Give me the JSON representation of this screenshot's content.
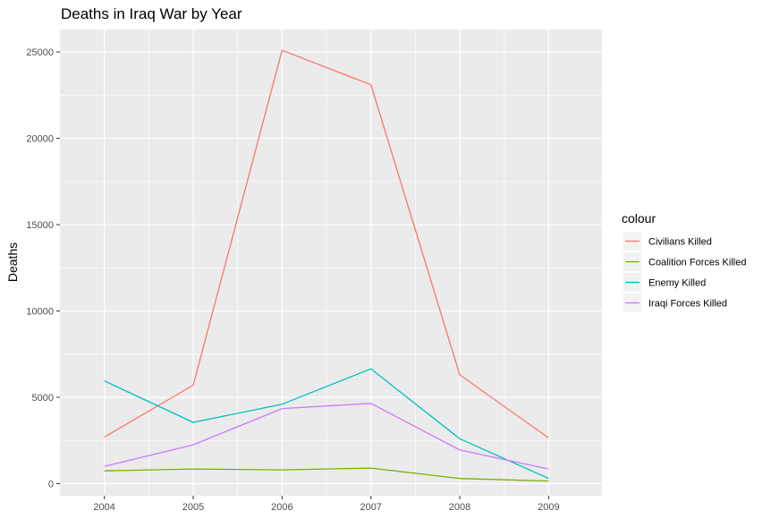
{
  "chart_data": {
    "type": "line",
    "title": "Deaths in Iraq War by Year",
    "xlabel": "",
    "ylabel": "Deaths",
    "x": [
      2004,
      2005,
      2006,
      2007,
      2008,
      2009
    ],
    "x_tick_labels": [
      "2004",
      "2005",
      "2006",
      "2007",
      "2008",
      "2009"
    ],
    "y_ticks": [
      0,
      5000,
      10000,
      15000,
      20000,
      25000
    ],
    "y_tick_labels": [
      "0",
      "5000",
      "10000",
      "15000",
      "20000",
      "25000"
    ],
    "xlim": [
      2003.5,
      2009.6
    ],
    "ylim": [
      -700,
      26300
    ],
    "grid": true,
    "legend": {
      "title": "colour",
      "position": "right"
    },
    "series": [
      {
        "name": "Civilians Killed",
        "color": "#F8766D",
        "values": [
          2700,
          5700,
          25100,
          23100,
          6300,
          2650
        ]
      },
      {
        "name": "Coalition Forces Killed",
        "color": "#7CAE00",
        "values": [
          740,
          850,
          800,
          900,
          300,
          150
        ]
      },
      {
        "name": "Enemy Killed",
        "color": "#00BFC4",
        "values": [
          5950,
          3550,
          4600,
          6650,
          2600,
          300
        ]
      },
      {
        "name": "Iraqi Forces Killed",
        "color": "#C77CFF",
        "values": [
          1000,
          2250,
          4350,
          4650,
          1950,
          850
        ]
      }
    ]
  }
}
